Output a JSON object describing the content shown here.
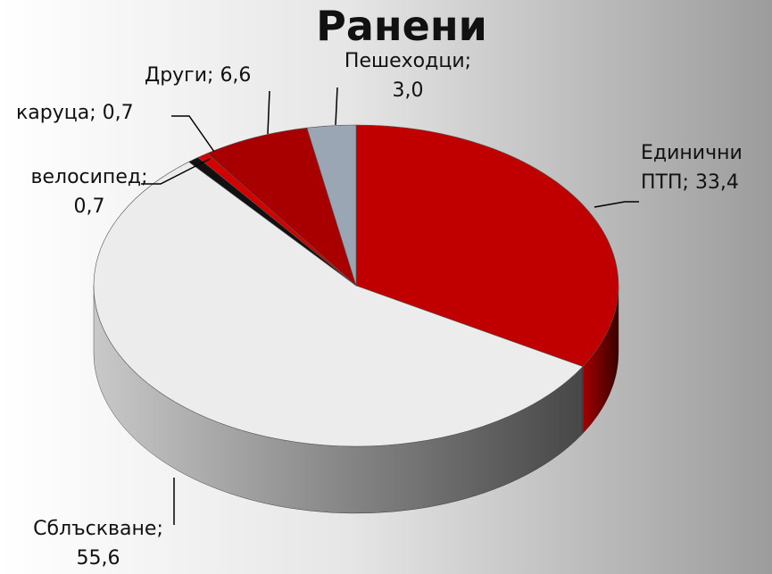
{
  "chart_data": {
    "type": "pie",
    "title": "Ранени",
    "categories": [
      "Единични ПТП",
      "Сблъскване",
      "велосипед",
      "каруца",
      "Други",
      "Пешеходци"
    ],
    "values": [
      33.4,
      55.6,
      0.7,
      0.7,
      6.6,
      3.0
    ],
    "value_labels": [
      "33,4",
      "55,6",
      "0,7",
      "0,7",
      "6,6",
      "3,0"
    ],
    "label_separator": "; ",
    "colors": [
      "#c00000",
      "#ececec",
      "#111111",
      "#d40000",
      "#a80000",
      "#9aa6b4"
    ],
    "start_angle": 0,
    "direction": "clockwise",
    "three_d": true
  }
}
